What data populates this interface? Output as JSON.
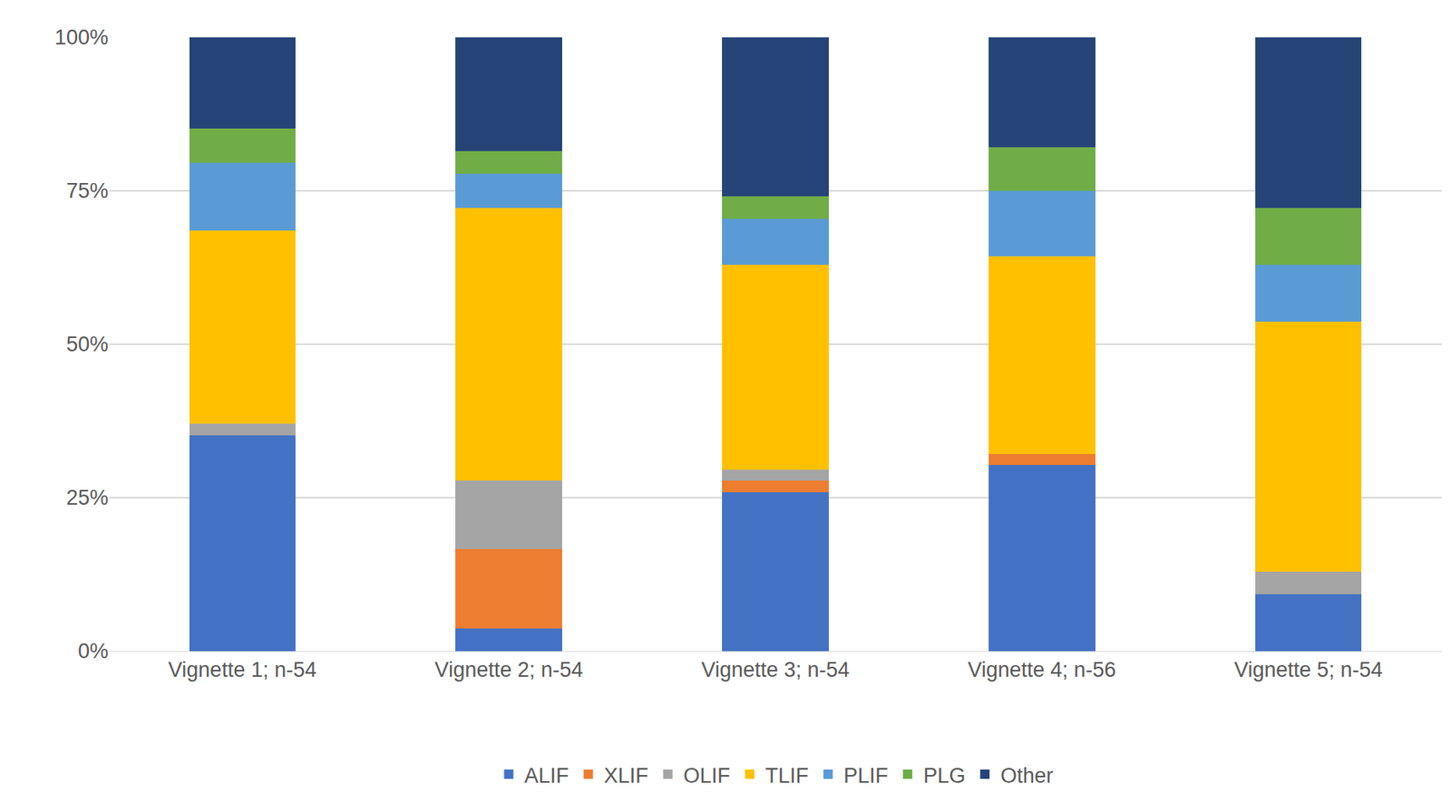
{
  "chart_data": {
    "type": "bar",
    "stacked": true,
    "categories": [
      "Vignette 1; n-54",
      "Vignette 2; n-54",
      "Vignette 3; n-54",
      "Vignette 4; n-56",
      "Vignette 5; n-54"
    ],
    "series": [
      {
        "name": "ALIF",
        "color": "#4472c4",
        "values": [
          35.19,
          3.7,
          25.93,
          30.36,
          9.26
        ]
      },
      {
        "name": "XLIF",
        "color": "#ed7d31",
        "values": [
          0,
          12.96,
          1.85,
          1.79,
          0
        ]
      },
      {
        "name": "OLIF",
        "color": "#a5a5a5",
        "values": [
          1.85,
          11.11,
          1.85,
          0,
          3.7
        ]
      },
      {
        "name": "TLIF",
        "color": "#ffc000",
        "values": [
          31.48,
          44.44,
          33.33,
          32.14,
          40.74
        ]
      },
      {
        "name": "PLIF",
        "color": "#5b9bd5",
        "values": [
          11.11,
          5.56,
          7.41,
          10.71,
          9.26
        ]
      },
      {
        "name": "PLG",
        "color": "#70ad47",
        "values": [
          5.56,
          3.7,
          3.7,
          7.14,
          9.26
        ]
      },
      {
        "name": "Other",
        "color": "#264478",
        "values": [
          14.81,
          18.52,
          25.93,
          17.86,
          27.78
        ]
      }
    ],
    "ylim": [
      0,
      100
    ],
    "yticks": [
      {
        "value": 0,
        "label": "0%"
      },
      {
        "value": 25,
        "label": "25%"
      },
      {
        "value": 50,
        "label": "50%"
      },
      {
        "value": 75,
        "label": "75%"
      },
      {
        "value": 100,
        "label": "100%"
      }
    ],
    "grid": true,
    "legend": "bottom"
  }
}
